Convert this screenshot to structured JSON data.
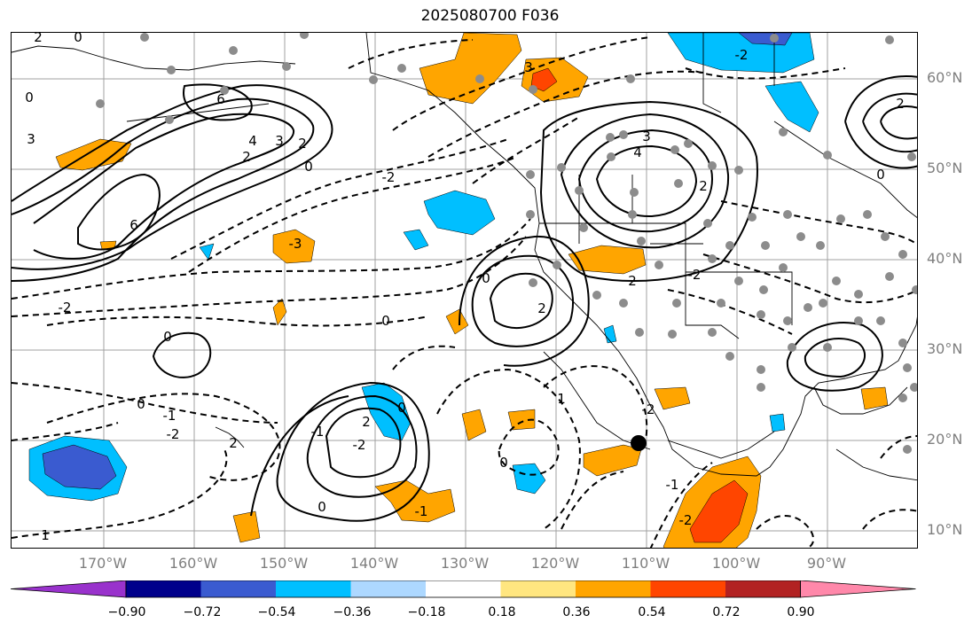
{
  "title": "2025080700 F036",
  "lat_labels": [
    "60°N",
    "50°N",
    "40°N",
    "30°N",
    "20°N",
    "10°N"
  ],
  "lon_labels": [
    "170°W",
    "160°W",
    "150°W",
    "140°W",
    "130°W",
    "120°W",
    "110°W",
    "100°W",
    "90°W"
  ],
  "colorbar": {
    "colors": [
      "#9932cc",
      "#00008b",
      "#3a5bd0",
      "#00bfff",
      "#add8ff",
      "#ffffff",
      "#ffe680",
      "#ffa500",
      "#ff4500",
      "#b22222",
      "#ff88aa"
    ],
    "ticks": [
      "−0.90",
      "−0.72",
      "−0.54",
      "−0.36",
      "−0.18",
      "0.18",
      "0.36",
      "0.54",
      "0.72",
      "0.90"
    ]
  },
  "contour_labels": [
    "2",
    "0",
    "0",
    "6",
    "4",
    "3",
    "2",
    "0",
    "2",
    "6",
    "3",
    "-3",
    "-2",
    "0",
    "2",
    "0",
    "-2",
    "4",
    "3",
    "2",
    "0",
    "-2",
    "-2",
    "0",
    "0",
    "-1",
    "-2",
    "2",
    "-2",
    "-1",
    "2",
    "0",
    "0",
    "-1",
    "0",
    "1",
    "2",
    "3",
    "2",
    "-2",
    "-1",
    "-2",
    "1"
  ],
  "legend_colors": {
    "contour": "#000000",
    "station": "#8c8c8c",
    "marker": "#000000"
  }
}
